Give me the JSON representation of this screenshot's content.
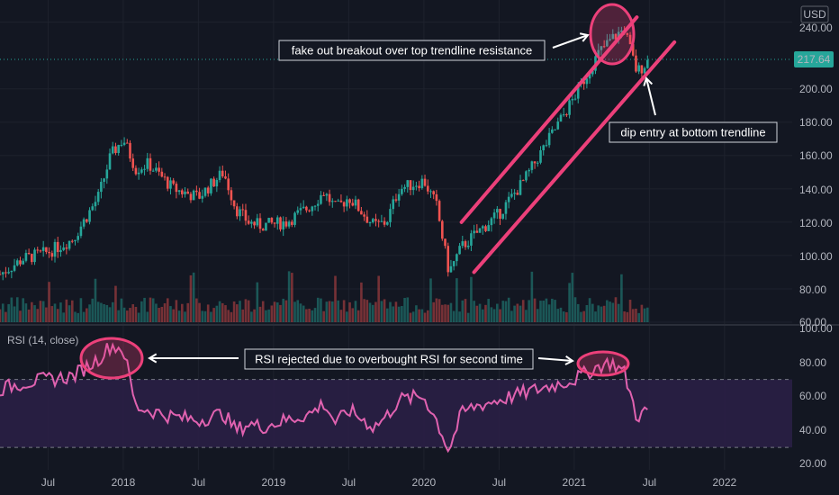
{
  "currency": "USD",
  "last_price": "217.64",
  "price_ticks": [
    "240.00",
    "200.00",
    "180.00",
    "160.00",
    "140.00",
    "120.00",
    "100.00",
    "80.00",
    "60.00"
  ],
  "rsi_ticks": [
    "100.00",
    "80.00",
    "60.00",
    "40.00",
    "20.00"
  ],
  "x_ticks": [
    "Jul",
    "2018",
    "Jul",
    "2019",
    "Jul",
    "2020",
    "Jul",
    "2021",
    "Jul",
    "2022"
  ],
  "rsi_label": "RSI (14, close)",
  "annotations": {
    "fakeout": "fake out breakout over top trendline resistance",
    "dip": "dip entry at bottom trendline",
    "rsi": "RSI rejected due to overbought RSI for second time"
  },
  "colors": {
    "background": "#131722",
    "up": "#26a69a",
    "down": "#ef5350",
    "rsi_line": "#e062b0",
    "annotation": "#ec407a",
    "rsi_band": "#2a1f45",
    "price_label_bg": "#26a69a"
  },
  "chart_data": [
    {
      "type": "candlestick",
      "x_axis_labels": [
        "Jul",
        "2018",
        "Jul",
        "2019",
        "Jul",
        "2020",
        "Jul",
        "2021",
        "Jul",
        "2022"
      ],
      "ylim": [
        60,
        245
      ],
      "last_price": 217.64,
      "price_path": [
        [
          "2017-03",
          88
        ],
        [
          "2017-05",
          98
        ],
        [
          "2017-07",
          102
        ],
        [
          "2017-09",
          110
        ],
        [
          "2017-11",
          135
        ],
        [
          "2017-12",
          160
        ],
        [
          "2018-01",
          170
        ],
        [
          "2018-02",
          152
        ],
        [
          "2018-03",
          155
        ],
        [
          "2018-05",
          140
        ],
        [
          "2018-07",
          135
        ],
        [
          "2018-09",
          150
        ],
        [
          "2018-10",
          128
        ],
        [
          "2018-11",
          120
        ],
        [
          "2018-12",
          118
        ],
        [
          "2019-02",
          120
        ],
        [
          "2019-04",
          130
        ],
        [
          "2019-05",
          138
        ],
        [
          "2019-06",
          128
        ],
        [
          "2019-07",
          135
        ],
        [
          "2019-09",
          118
        ],
        [
          "2019-10",
          120
        ],
        [
          "2019-11",
          140
        ],
        [
          "2020-01",
          145
        ],
        [
          "2020-02",
          130
        ],
        [
          "2020-03",
          90
        ],
        [
          "2020-04",
          105
        ],
        [
          "2020-05",
          112
        ],
        [
          "2020-07",
          125
        ],
        [
          "2020-09",
          145
        ],
        [
          "2020-11",
          170
        ],
        [
          "2021-01",
          195
        ],
        [
          "2021-03",
          222
        ],
        [
          "2021-04",
          230
        ],
        [
          "2021-05",
          236
        ],
        [
          "2021-06",
          210
        ],
        [
          "2021-07",
          217.64
        ]
      ],
      "trendlines": [
        {
          "name": "top trendline",
          "points": [
            [
              "2020-04",
              120
            ],
            [
              "2021-06",
              243
            ]
          ]
        },
        {
          "name": "bottom trendline",
          "points": [
            [
              "2020-05",
              90
            ],
            [
              "2021-09",
              228
            ]
          ]
        }
      ]
    },
    {
      "type": "line",
      "title": "RSI (14, close)",
      "ylim": [
        20,
        100
      ],
      "levels": [
        70,
        30
      ],
      "rsi_path": [
        [
          "2017-03",
          64
        ],
        [
          "2017-05",
          68
        ],
        [
          "2017-07",
          70
        ],
        [
          "2017-09",
          72
        ],
        [
          "2017-11",
          82
        ],
        [
          "2017-12",
          90
        ],
        [
          "2018-01",
          88
        ],
        [
          "2018-02",
          54
        ],
        [
          "2018-03",
          52
        ],
        [
          "2018-05",
          48
        ],
        [
          "2018-07",
          46
        ],
        [
          "2018-09",
          50
        ],
        [
          "2018-10",
          40
        ],
        [
          "2018-11",
          44
        ],
        [
          "2018-12",
          42
        ],
        [
          "2019-02",
          46
        ],
        [
          "2019-04",
          50
        ],
        [
          "2019-05",
          56
        ],
        [
          "2019-06",
          44
        ],
        [
          "2019-07",
          52
        ],
        [
          "2019-09",
          42
        ],
        [
          "2019-10",
          48
        ],
        [
          "2019-11",
          58
        ],
        [
          "2020-01",
          60
        ],
        [
          "2020-02",
          46
        ],
        [
          "2020-03",
          28
        ],
        [
          "2020-04",
          50
        ],
        [
          "2020-05",
          54
        ],
        [
          "2020-07",
          58
        ],
        [
          "2020-09",
          62
        ],
        [
          "2020-11",
          66
        ],
        [
          "2021-01",
          70
        ],
        [
          "2021-03",
          78
        ],
        [
          "2021-04",
          80
        ],
        [
          "2021-05",
          74
        ],
        [
          "2021-06",
          48
        ],
        [
          "2021-07",
          52
        ]
      ]
    }
  ]
}
